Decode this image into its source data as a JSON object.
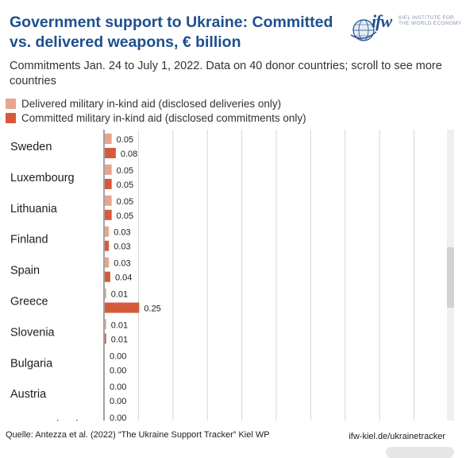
{
  "header": {
    "title": "Government support to Ukraine: Committed vs. delivered weapons, € billion",
    "subtitle": "Commitments Jan. 24 to July 1, 2022. Data on 40 donor countries; scroll to see more countries"
  },
  "logo": {
    "mark": "ifw",
    "line1": "KIEL INSTITUTE FOR",
    "line2": "THE WORLD ECONOMY"
  },
  "legend": {
    "delivered": "Delivered military in-kind aid (disclosed deliveries only)",
    "committed": "Committed military in-kind aid (disclosed commitments only)"
  },
  "colors": {
    "title": "#1d4f8f",
    "delivered": "#e8a48d",
    "committed": "#d55b3c",
    "grid": "#d6d6d6"
  },
  "chart_data": {
    "type": "bar",
    "orientation": "horizontal",
    "categories": [
      "Sweden",
      "Luxembourg",
      "Lithuania",
      "Finland",
      "Spain",
      "Greece",
      "Slovenia",
      "Bulgaria",
      "Austria",
      "New Zealand"
    ],
    "series": [
      {
        "name": "Delivered military in-kind aid (disclosed deliveries only)",
        "values": [
          0.05,
          0.05,
          0.05,
          0.03,
          0.03,
          0.01,
          0.01,
          0.0,
          0.0,
          0.0
        ]
      },
      {
        "name": "Committed military in-kind aid (disclosed commitments only)",
        "values": [
          0.08,
          0.05,
          0.05,
          0.03,
          0.04,
          0.25,
          0.01,
          0.0,
          0.0,
          null
        ]
      }
    ],
    "value_labels": {
      "delivered": [
        "0.05",
        "0.05",
        "0.05",
        "0.03",
        "0.03",
        "0.01",
        "0.01",
        "0.00",
        "0.00",
        "0.00"
      ],
      "committed": [
        "0.08",
        "0.05",
        "0.05",
        "0.03",
        "0.04",
        "0.25",
        "0.01",
        "0.00",
        "0.00",
        ""
      ]
    },
    "xlim": [
      0,
      2.5
    ],
    "grid": true,
    "legend_position": "top-left",
    "title": "Government support to Ukraine: Committed vs. delivered weapons, € billion",
    "xlabel": "",
    "ylabel": ""
  },
  "footer": {
    "source": "Quelle: Antezza et al. (2022) “The Ukraine Support Tracker” Kiel WP",
    "url": "ifw-kiel.de/ukrainetracker"
  }
}
